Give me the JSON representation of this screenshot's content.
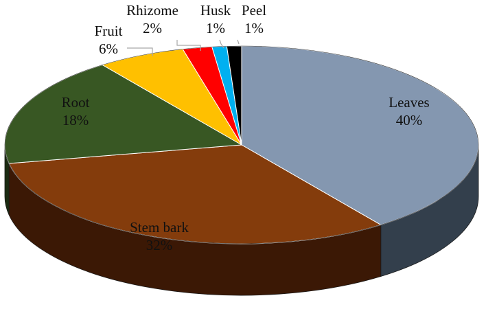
{
  "chart_data": {
    "type": "pie",
    "title": "",
    "legend": "none",
    "slices": [
      {
        "label": "Leaves",
        "percent_label": "40%",
        "value": 40,
        "color": "#8497b0",
        "side_color": "#333f4c"
      },
      {
        "label": "Stem bark",
        "percent_label": "32%",
        "value": 32,
        "color": "#843c0c",
        "side_color": "#3b1805"
      },
      {
        "label": "Root",
        "percent_label": "18%",
        "value": 18,
        "color": "#385723",
        "side_color": "#1b2b11"
      },
      {
        "label": "Fruit",
        "percent_label": "6%",
        "value": 6,
        "color": "#ffc000",
        "side_color": "#8a6800"
      },
      {
        "label": "Rhizome",
        "percent_label": "2%",
        "value": 2,
        "color": "#ff0000",
        "side_color": "#8a0000"
      },
      {
        "label": "Husk",
        "percent_label": "1%",
        "value": 1,
        "color": "#00b0f0",
        "side_color": "#005d80"
      },
      {
        "label": "Peel",
        "percent_label": "1%",
        "value": 1,
        "color": "#000000",
        "side_color": "#000000"
      }
    ]
  }
}
